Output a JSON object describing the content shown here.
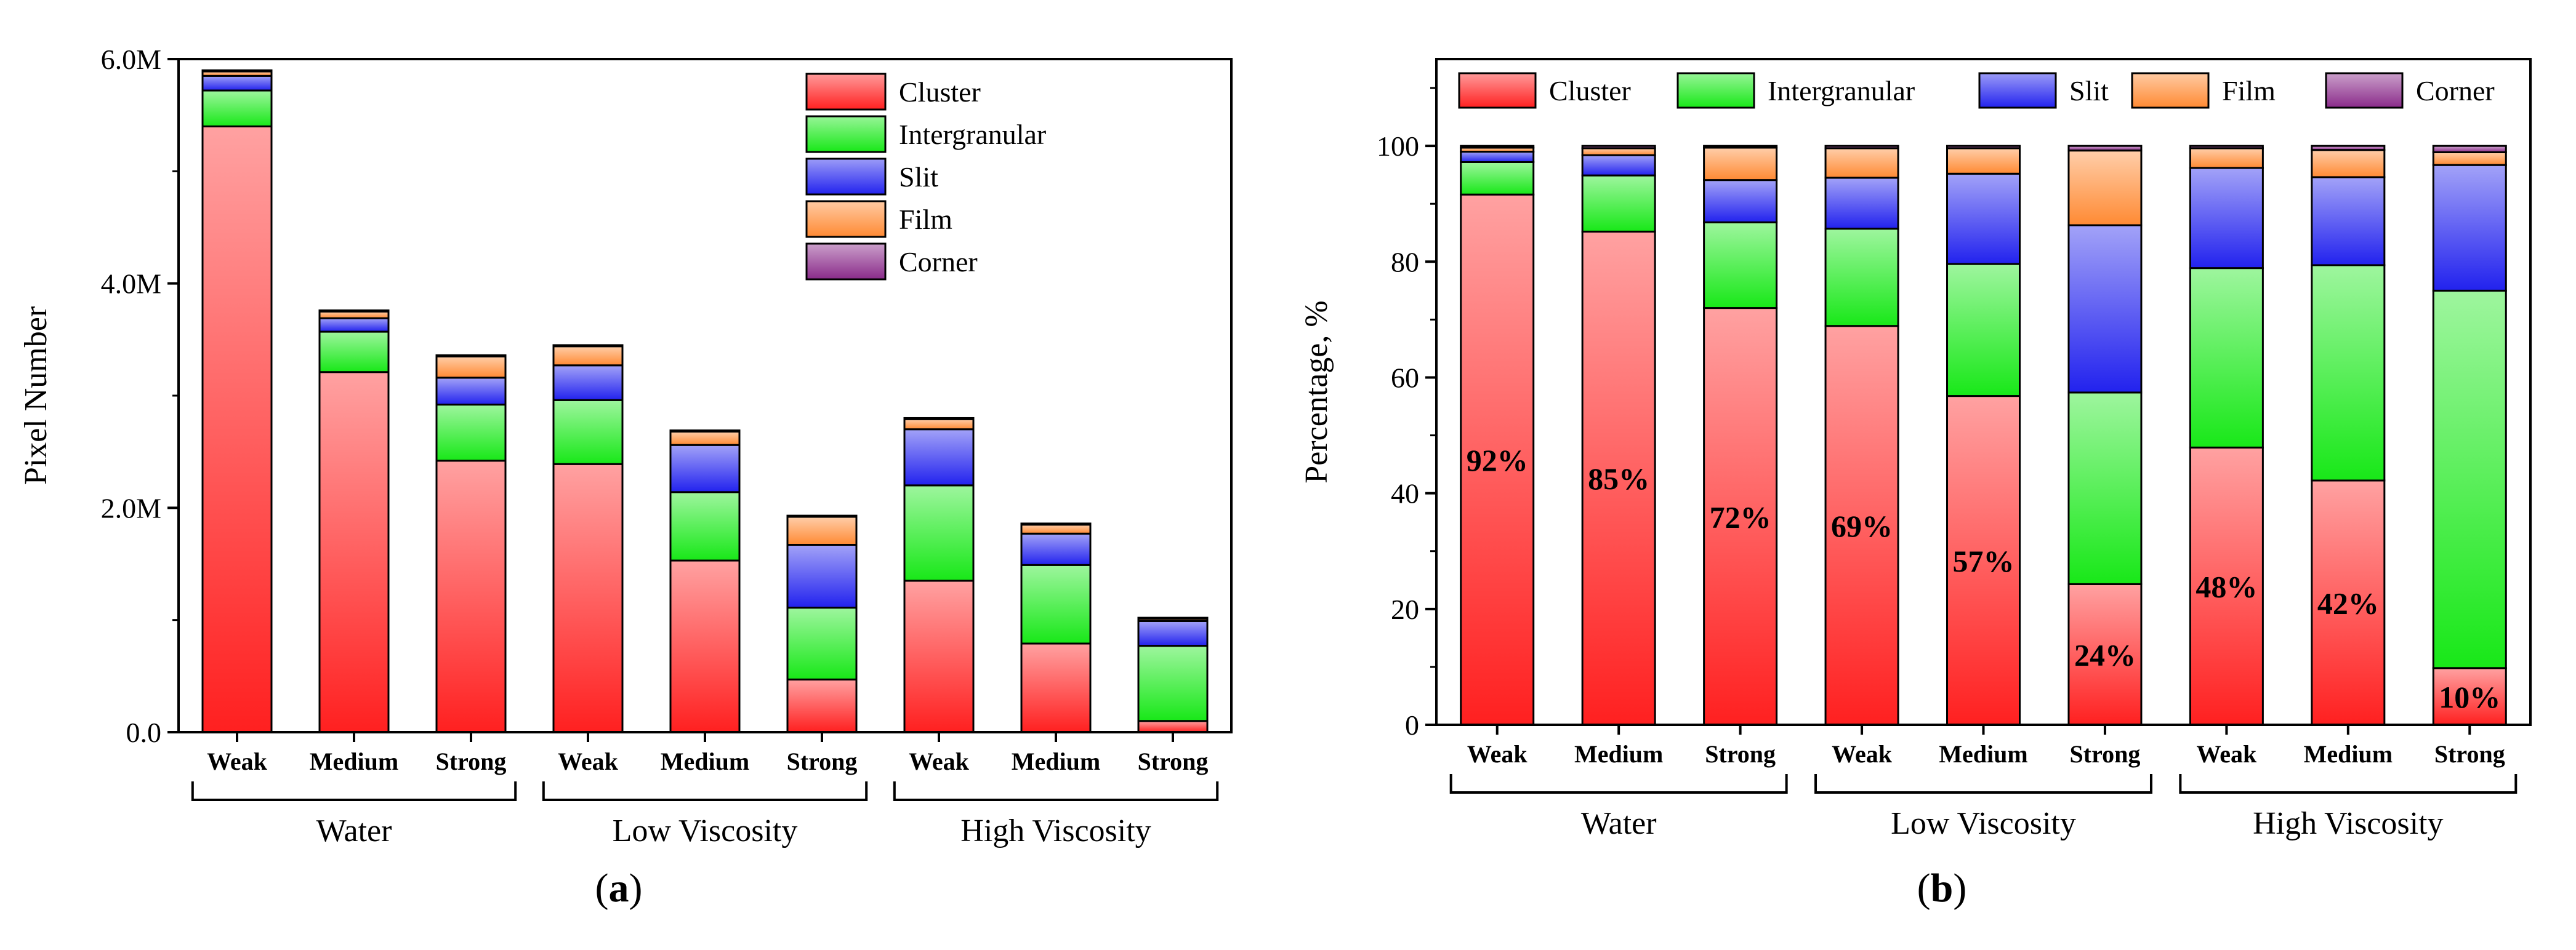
{
  "colors": {
    "Cluster": "#ff2020",
    "Intergranular": "#18e818",
    "Slit": "#2222ee",
    "Film": "#ff8a33",
    "Corner": "#8a2b8a"
  },
  "chart_data": [
    {
      "type": "bar",
      "stacked": true,
      "panel_label": "a",
      "ylabel": "Pixel Number",
      "ylim": [
        0,
        6000000
      ],
      "yticks": [
        "0.0",
        "2.0M",
        "4.0M",
        "6.0M"
      ],
      "ytick_values": [
        0,
        2000000,
        4000000,
        6000000
      ],
      "categories": [
        "Weak",
        "Medium",
        "Strong",
        "Weak",
        "Medium",
        "Strong",
        "Weak",
        "Medium",
        "Strong"
      ],
      "groups": [
        {
          "label": "Water",
          "from": 0,
          "to": 2
        },
        {
          "label": "Low Viscosity",
          "from": 3,
          "to": 5
        },
        {
          "label": "High Viscosity",
          "from": 6,
          "to": 8
        }
      ],
      "legend": {
        "placement": "top-right",
        "entries": [
          "Cluster",
          "Intergranular",
          "Slit",
          "Film",
          "Corner"
        ]
      },
      "series": [
        {
          "name": "Cluster",
          "values": [
            5400000,
            3210000,
            2420000,
            2390000,
            1530000,
            470000,
            1350000,
            790000,
            100000
          ]
        },
        {
          "name": "Intergranular",
          "values": [
            320000,
            360000,
            500000,
            570000,
            610000,
            640000,
            850000,
            700000,
            670000
          ]
        },
        {
          "name": "Slit",
          "values": [
            130000,
            120000,
            240000,
            310000,
            420000,
            560000,
            500000,
            280000,
            220000
          ]
        },
        {
          "name": "Film",
          "values": [
            40000,
            60000,
            190000,
            170000,
            120000,
            250000,
            90000,
            80000,
            20000
          ]
        },
        {
          "name": "Corner",
          "values": [
            10000,
            10000,
            10000,
            10000,
            10000,
            10000,
            10000,
            10000,
            10000
          ]
        }
      ]
    },
    {
      "type": "bar",
      "stacked": true,
      "panel_label": "b",
      "ylabel": "Percentage, %",
      "ylim": [
        0,
        115
      ],
      "yticks": [
        "0",
        "20",
        "40",
        "60",
        "80",
        "100"
      ],
      "ytick_values": [
        0,
        20,
        40,
        60,
        80,
        100
      ],
      "categories": [
        "Weak",
        "Medium",
        "Strong",
        "Weak",
        "Medium",
        "Strong",
        "Weak",
        "Medium",
        "Strong"
      ],
      "groups": [
        {
          "label": "Water",
          "from": 0,
          "to": 2
        },
        {
          "label": "Low Viscosity",
          "from": 3,
          "to": 5
        },
        {
          "label": "High Viscosity",
          "from": 6,
          "to": 8
        }
      ],
      "legend": {
        "placement": "top",
        "entries": [
          "Cluster",
          "Intergranular",
          "Slit",
          "Film",
          "Corner"
        ]
      },
      "data_labels": [
        "92%",
        "85%",
        "72%",
        "69%",
        "57%",
        "24%",
        "48%",
        "42%",
        "10%"
      ],
      "series": [
        {
          "name": "Cluster",
          "values": [
            91.6,
            85.2,
            72.0,
            68.9,
            56.8,
            24.3,
            47.9,
            42.2,
            9.8
          ]
        },
        {
          "name": "Intergranular",
          "values": [
            5.6,
            9.7,
            14.8,
            16.8,
            22.8,
            33.1,
            31.0,
            37.2,
            65.2
          ]
        },
        {
          "name": "Slit",
          "values": [
            1.8,
            3.5,
            7.3,
            8.8,
            15.6,
            28.9,
            17.3,
            15.2,
            21.7
          ]
        },
        {
          "name": "Film",
          "values": [
            0.7,
            1.2,
            5.6,
            5.1,
            4.4,
            12.9,
            3.4,
            4.7,
            2.2
          ]
        },
        {
          "name": "Corner",
          "values": [
            0.3,
            0.4,
            0.3,
            0.4,
            0.4,
            0.8,
            0.4,
            0.7,
            1.1
          ]
        }
      ]
    }
  ]
}
